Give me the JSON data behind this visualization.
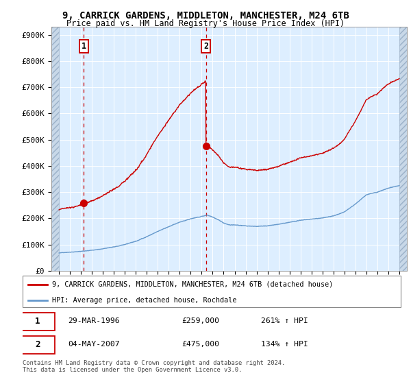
{
  "title_line1": "9, CARRICK GARDENS, MIDDLETON, MANCHESTER, M24 6TB",
  "title_line2": "Price paid vs. HM Land Registry's House Price Index (HPI)",
  "legend_label1": "9, CARRICK GARDENS, MIDDLETON, MANCHESTER, M24 6TB (detached house)",
  "legend_label2": "HPI: Average price, detached house, Rochdale",
  "table_rows": [
    {
      "num": "1",
      "date": "29-MAR-1996",
      "price": "£259,000",
      "hpi": "261% ↑ HPI"
    },
    {
      "num": "2",
      "date": "04-MAY-2007",
      "price": "£475,000",
      "hpi": "134% ↑ HPI"
    }
  ],
  "footer": "Contains HM Land Registry data © Crown copyright and database right 2024.\nThis data is licensed under the Open Government Licence v3.0.",
  "ylim": [
    0,
    900000
  ],
  "yticks": [
    0,
    100000,
    200000,
    300000,
    400000,
    500000,
    600000,
    700000,
    800000,
    900000
  ],
  "ytick_labels": [
    "£0",
    "£100K",
    "£200K",
    "£300K",
    "£400K",
    "£500K",
    "£600K",
    "£700K",
    "£800K",
    "£900K"
  ],
  "sale1_x": 1996.24,
  "sale1_y": 259000,
  "sale2_x": 2007.38,
  "sale2_y": 475000,
  "red_color": "#cc0000",
  "blue_color": "#6699cc",
  "bg_plot": "#ddeeff",
  "vline_color": "#cc0000",
  "xmin": 1994.0,
  "xmax": 2025.0
}
